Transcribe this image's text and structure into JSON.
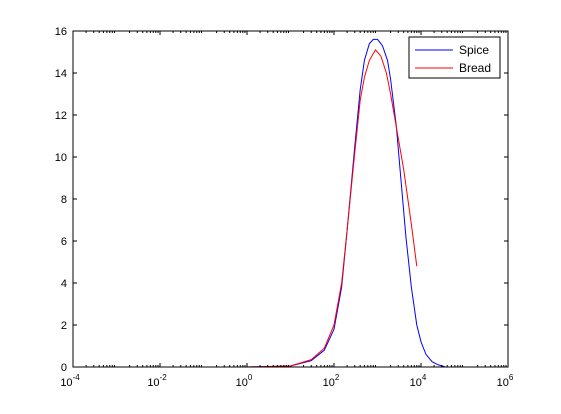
{
  "chart_data": {
    "type": "line",
    "x_scale": "log",
    "xlim": [
      0.0001,
      1000000
    ],
    "ylim": [
      0,
      16
    ],
    "grid": false,
    "legend_position": "top-right",
    "x_ticks": [
      {
        "base": "10",
        "exp": "-4"
      },
      {
        "base": "10",
        "exp": "-2"
      },
      {
        "base": "10",
        "exp": "0"
      },
      {
        "base": "10",
        "exp": "2"
      },
      {
        "base": "10",
        "exp": "4"
      },
      {
        "base": "10",
        "exp": "6"
      }
    ],
    "y_ticks": [
      "0",
      "2",
      "4",
      "6",
      "8",
      "10",
      "12",
      "14",
      "16"
    ],
    "series": [
      {
        "name": "Spice",
        "color": "#0000ff",
        "points": [
          [
            0.001,
            0
          ],
          [
            1,
            0
          ],
          [
            10,
            0.05
          ],
          [
            30,
            0.3
          ],
          [
            60,
            0.8
          ],
          [
            100,
            1.8
          ],
          [
            150,
            3.8
          ],
          [
            200,
            6.5
          ],
          [
            300,
            10.5
          ],
          [
            400,
            13.2
          ],
          [
            500,
            14.6
          ],
          [
            650,
            15.4
          ],
          [
            800,
            15.6
          ],
          [
            1000,
            15.6
          ],
          [
            1300,
            15.3
          ],
          [
            1700,
            14.6
          ],
          [
            2000,
            13.7
          ],
          [
            2700,
            11.5
          ],
          [
            3500,
            8.8
          ],
          [
            4500,
            6.2
          ],
          [
            6000,
            3.8
          ],
          [
            8000,
            2.0
          ],
          [
            10000,
            1.2
          ],
          [
            13000,
            0.6
          ],
          [
            18000,
            0.25
          ],
          [
            25000,
            0.1
          ],
          [
            35000,
            0.02
          ]
        ]
      },
      {
        "name": "Bread",
        "color": "#ff0000",
        "points": [
          [
            1,
            0
          ],
          [
            10,
            0.05
          ],
          [
            30,
            0.35
          ],
          [
            60,
            0.9
          ],
          [
            100,
            2.0
          ],
          [
            150,
            4.0
          ],
          [
            200,
            6.5
          ],
          [
            300,
            10.2
          ],
          [
            400,
            12.7
          ],
          [
            500,
            13.8
          ],
          [
            650,
            14.6
          ],
          [
            900,
            15.1
          ],
          [
            1200,
            14.8
          ],
          [
            1600,
            14.0
          ],
          [
            2000,
            13.0
          ],
          [
            3000,
            10.9
          ],
          [
            4000,
            9.4
          ],
          [
            6000,
            6.8
          ],
          [
            8000,
            4.8
          ]
        ]
      }
    ]
  }
}
